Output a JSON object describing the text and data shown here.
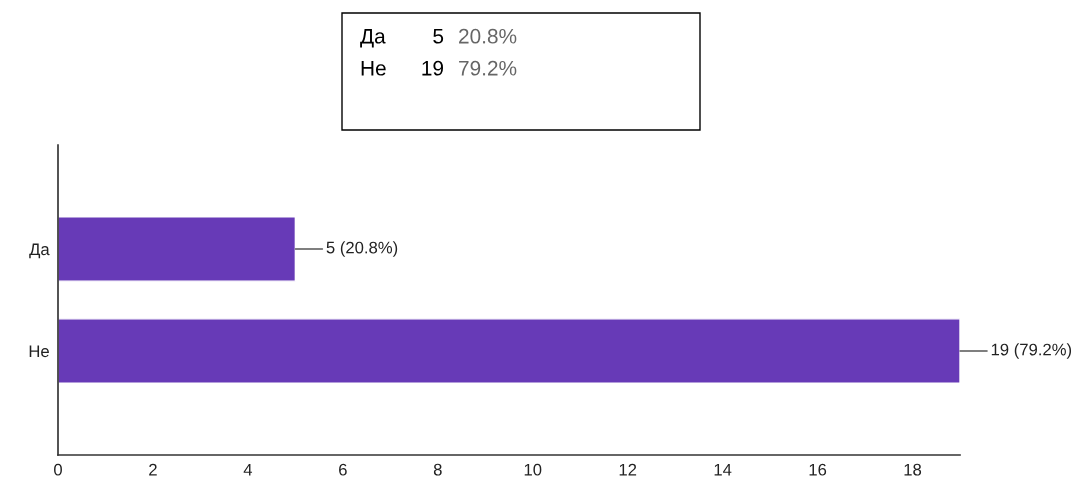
{
  "chart_data": {
    "type": "bar",
    "orientation": "horizontal",
    "categories": [
      "Да",
      "Не"
    ],
    "values": [
      5,
      19
    ],
    "color": "#673ab7",
    "value_labels": [
      "5 (20.8%)",
      "19 (79.2%)"
    ],
    "xlim": [
      0,
      19
    ],
    "xticks": [
      0,
      2,
      4,
      6,
      8,
      10,
      12,
      14,
      16,
      18
    ],
    "grid": false,
    "annotations": [
      "Да",
      "5",
      "20.8%",
      "Не",
      "19",
      "79.2%"
    ]
  }
}
